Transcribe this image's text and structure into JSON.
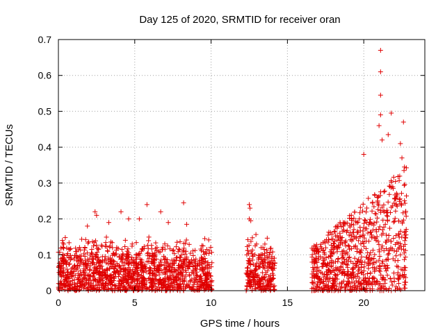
{
  "chart_data": {
    "type": "scatter",
    "title": "Day 125 of 2020, SRMTID for receiver oran",
    "xlabel": "GPS time / hours",
    "ylabel": "SRMTID / TECUs",
    "xlim": [
      0,
      24
    ],
    "ylim": [
      0,
      0.7
    ],
    "x_ticks": [
      0,
      5,
      10,
      15,
      20
    ],
    "y_ticks": [
      0,
      0.1,
      0.2,
      0.3,
      0.4,
      0.5,
      0.6,
      0.7
    ],
    "grid": true,
    "marker": "plus",
    "color": "#e00000",
    "series": [
      {
        "name": "SRMTID",
        "segments": [
          {
            "x_range": [
              0.0,
              10.1
            ],
            "y_typical": [
              0.0,
              0.15
            ],
            "y_outliers": [
              [
                2.4,
                0.22
              ],
              [
                2.5,
                0.21
              ],
              [
                4.1,
                0.22
              ],
              [
                5.8,
                0.24
              ],
              [
                6.7,
                0.22
              ],
              [
                8.2,
                0.245
              ],
              [
                1.9,
                0.18
              ],
              [
                3.3,
                0.19
              ],
              [
                5.3,
                0.2
              ],
              [
                7.2,
                0.19
              ],
              [
                8.4,
                0.185
              ],
              [
                4.6,
                0.2
              ]
            ]
          },
          {
            "x_range": [
              12.3,
              14.2
            ],
            "y_typical": [
              0.0,
              0.16
            ],
            "y_outliers": [
              [
                12.5,
                0.24
              ],
              [
                12.55,
                0.23
              ],
              [
                12.5,
                0.2
              ],
              [
                12.6,
                0.195
              ]
            ]
          },
          {
            "x_range": [
              16.6,
              22.8
            ],
            "y_typical": [
              0.0,
              0.35
            ],
            "y_outliers": [
              [
                21.1,
                0.67
              ],
              [
                21.1,
                0.61
              ],
              [
                21.1,
                0.545
              ],
              [
                21.8,
                0.495
              ],
              [
                21.1,
                0.49
              ],
              [
                21.0,
                0.46
              ],
              [
                22.6,
                0.47
              ],
              [
                21.6,
                0.435
              ],
              [
                21.2,
                0.42
              ],
              [
                20.0,
                0.38
              ],
              [
                22.4,
                0.41
              ],
              [
                22.5,
                0.37
              ]
            ]
          }
        ],
        "isolated_points": [
          [
            12.3,
            0.0
          ],
          [
            16.6,
            0.0
          ]
        ]
      }
    ]
  }
}
